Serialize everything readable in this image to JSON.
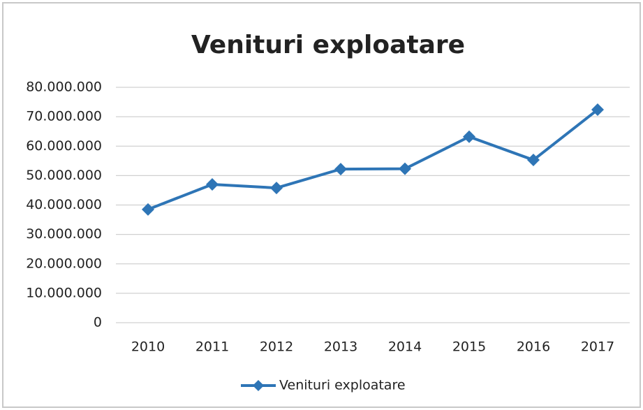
{
  "chart_data": {
    "type": "line",
    "title": "Venituri exploatare",
    "categories": [
      "2010",
      "2011",
      "2012",
      "2013",
      "2014",
      "2015",
      "2016",
      "2017"
    ],
    "series": [
      {
        "name": "Venituri exploatare",
        "color": "#2e75b6",
        "values": [
          38500000,
          47000000,
          45800000,
          52200000,
          52300000,
          63200000,
          55300000,
          72400000
        ]
      }
    ],
    "ylim": [
      0,
      80000000
    ],
    "yticks": [
      0,
      {
        "value": 10000000,
        "label": "10.000.000"
      },
      {
        "value": 20000000,
        "label": "20.000.000"
      },
      {
        "value": 30000000,
        "label": "30.000.000"
      },
      {
        "value": 40000000,
        "label": "40.000.000"
      },
      {
        "value": 50000000,
        "label": "50.000.000"
      },
      {
        "value": 60000000,
        "label": "60.000.000"
      },
      {
        "value": 70000000,
        "label": "70.000.000"
      },
      {
        "value": 80000000,
        "label": "80.000.000"
      }
    ],
    "grid": true,
    "legend": "bottom"
  }
}
